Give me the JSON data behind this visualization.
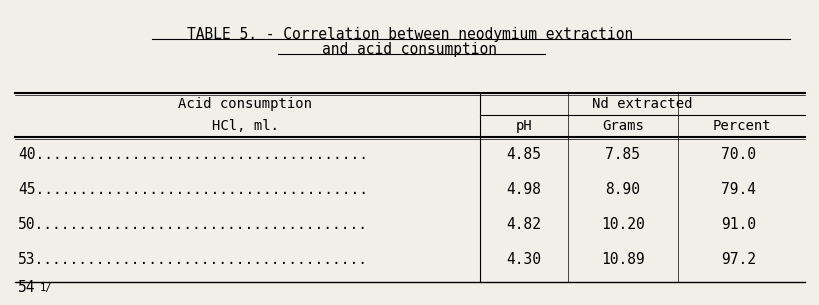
{
  "title_line1": "TABLE 5. - Correlation between neodymium extraction",
  "title_line2": "and acid consumption",
  "col_header_left": [
    "Acid consumption",
    "HCl, ml."
  ],
  "col_header_right_group": "Nd extracted",
  "col_header_right": [
    "pH",
    "Grams",
    "Percent"
  ],
  "rows": [
    [
      "40",
      "4.85",
      "7.85",
      "70.0"
    ],
    [
      "45",
      "4.98",
      "8.90",
      "79.4"
    ],
    [
      "50",
      "4.82",
      "10.20",
      "91.0"
    ],
    [
      "53",
      "4.30",
      "10.89",
      "97.2"
    ],
    [
      "54",
      "",
      "",
      ""
    ]
  ],
  "dots": "......................................",
  "bg_color": "#f2efe9",
  "font_family": "DejaVu Sans Mono",
  "title_fontsize": 10.5,
  "header_fontsize": 10,
  "data_fontsize": 10.5
}
